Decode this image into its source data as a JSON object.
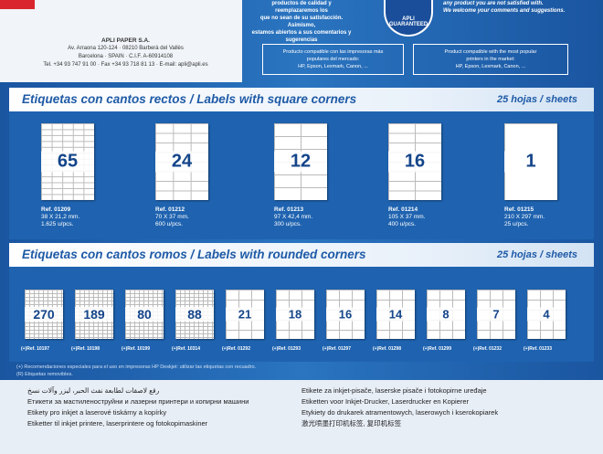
{
  "header": {
    "top_es": [
      "productos de calidad y reemplazaremos los",
      "que no sean de su satisfacción. Asimismo,",
      "estamos abiertos a sus comentarios y",
      "sugerencias"
    ],
    "top_en": [
      "any product you are not satisfied with.",
      "We welcome your comments and suggestions.",
      ""
    ],
    "seal": [
      "APLI",
      "GUARANTEED"
    ],
    "company": {
      "name": "APLI PAPER S.A.",
      "address": "Av. Arraona 120-124 · 08210 Barberà del Vallès",
      "city": "Barcelona · SPAIN · C.I.F. A-60914108",
      "contact": "Tel. +34 93 747 91 00 · Fax +34 93 718 81 13 · E-mail: apli@apli.es"
    },
    "compat_es": [
      "Producto compatible con las impresoras más",
      "populares del mercado:",
      "HP, Epson, Lexmark, Canon, ..."
    ],
    "compat_en": [
      "Product compatible with the most popular",
      "printers in the market:",
      "HP, Epson, Lexmark, Canon, ..."
    ]
  },
  "square": {
    "title": "Etiquetas con cantos rectos / Labels with square corners",
    "sheets": "25 hojas / sheets",
    "products": [
      {
        "count": "65",
        "ref": "Ref. 01209",
        "size": "38 X 21,2 mm.",
        "qty": "1.625 u/pcs."
      },
      {
        "count": "24",
        "ref": "Ref. 01212",
        "size": "70 X 37 mm.",
        "qty": "600 u/pcs."
      },
      {
        "count": "12",
        "ref": "Ref. 01213",
        "size": "97 X 42,4 mm.",
        "qty": "300 u/pcs."
      },
      {
        "count": "16",
        "ref": "Ref. 01214",
        "size": "105 X 37 mm.",
        "qty": "400 u/pcs."
      },
      {
        "count": "1",
        "ref": "Ref. 01215",
        "size": "210 X 297 mm.",
        "qty": "25 u/pcs."
      }
    ]
  },
  "rounded": {
    "title": "Etiquetas con cantos romos / Labels with rounded corners",
    "sheets": "25 hojas / sheets",
    "products": [
      {
        "count": "270",
        "ref": "(+)Ref. 10197"
      },
      {
        "count": "189",
        "ref": "(+)Ref. 10198"
      },
      {
        "count": "80",
        "ref": "(+)Ref. 10199"
      },
      {
        "count": "88",
        "ref": "(+)Ref. 10314"
      },
      {
        "count": "21",
        "ref": "(+)Ref. 01292"
      },
      {
        "count": "18",
        "ref": "(+)Ref. 01293"
      },
      {
        "count": "16",
        "ref": "(+)Ref. 01297"
      },
      {
        "count": "14",
        "ref": "(+)Ref. 01298"
      },
      {
        "count": "8",
        "ref": "(+)Ref. 01299"
      },
      {
        "count": "7",
        "ref": "(+)Ref. 01232"
      },
      {
        "count": "4",
        "ref": "(+)Ref. 01233"
      }
    ]
  },
  "notes": [
    "(+) Recomendaciones especiales para el uso en impresoras HP Deskjet: utilizar las etiquetas con recuadro.",
    "(R) Etiquetas removibles."
  ],
  "languages": [
    "رقع لاصقات لطابعة نفث الحبر، ليزر وآلات نسخ",
    "Етикети за мастиленоструйни и лазерни принтери и копирни машини",
    "Etikety pro inkjet a laserové tiskárny a kopírky",
    "Etiketter til inkjet printere, laserprintere og fotokopimaskiner",
    "Etikete za inkjet-pisače, laserske pisače i fotokopirne uređaje",
    "Etiketten voor Inkjet-Drucker, Laserdrucker en Kopierer",
    "Etykiety do drukarek atramentowych, laserowych i kserokopiarek",
    "激光喷墨打印机标签, 复印机标签"
  ]
}
